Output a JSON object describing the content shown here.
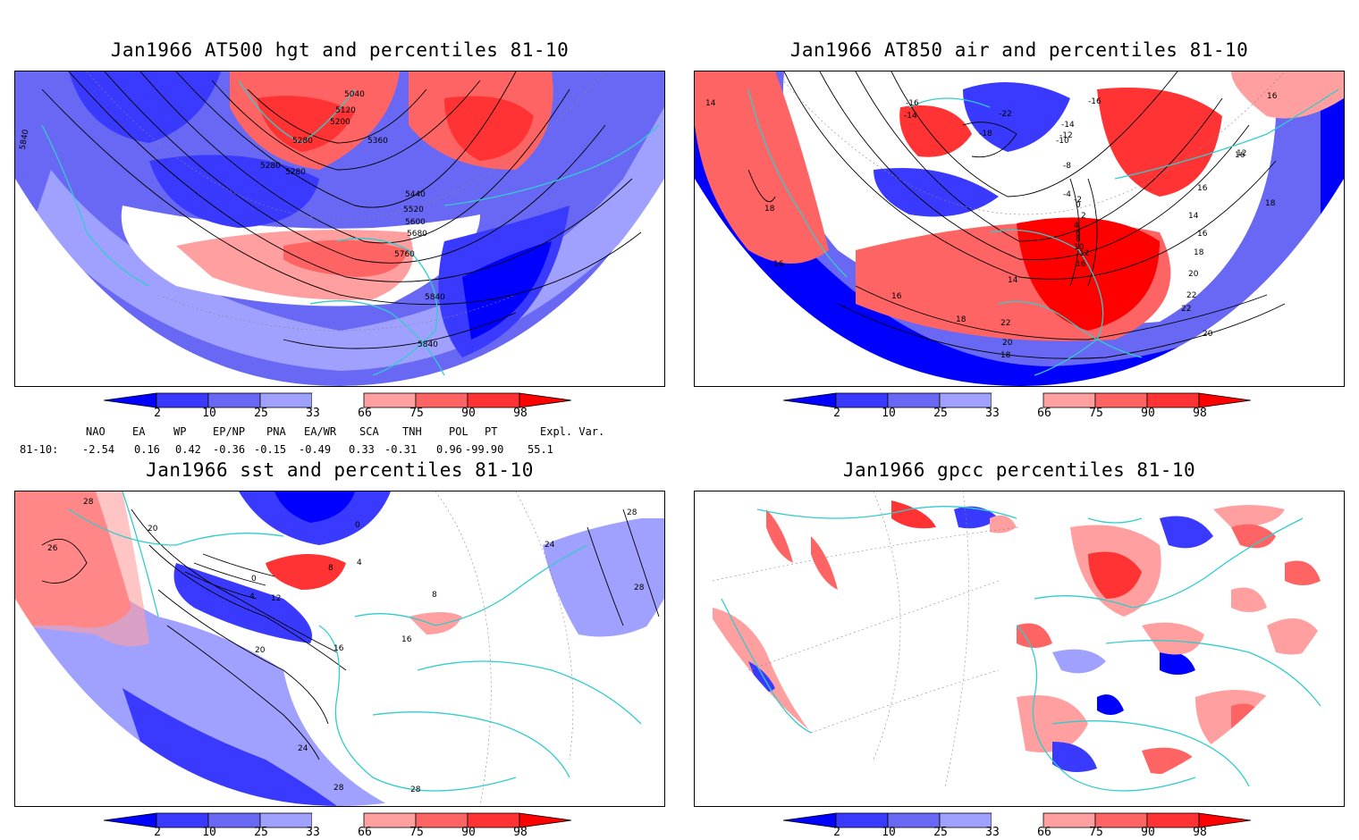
{
  "panels": [
    {
      "title": "Jan1966 AT500 hgt and percentiles 81-10",
      "contour_labels": [
        "5040",
        "5120",
        "5200",
        "5280",
        "5360",
        "5280",
        "5280",
        "5440",
        "5520",
        "5600",
        "5680",
        "5760",
        "5840",
        "5840",
        "5840"
      ]
    },
    {
      "title": "Jan1966 AT850 air and percentiles 81-10",
      "contour_labels": [
        "-16",
        "-14",
        "-16",
        "-18",
        "-22",
        "-14",
        "-12",
        "-10",
        "-8",
        "-4",
        "-2",
        "0",
        "2",
        "4",
        "6",
        "8",
        "10",
        "12",
        "14",
        "16",
        "16",
        "18",
        "20",
        "22",
        "22",
        "20",
        "18",
        "16",
        "16",
        "14",
        "14",
        "12",
        "16",
        "18",
        "16",
        "18",
        "22",
        "20",
        "18",
        "16"
      ]
    },
    {
      "title": "Jan1966 sst and percentiles 81-10",
      "contour_labels": [
        "28",
        "26",
        "20",
        "0",
        "4",
        "8",
        "12",
        "16",
        "20",
        "24",
        "28",
        "28",
        "16",
        "8",
        "4",
        "0",
        "24",
        "28",
        "28"
      ]
    },
    {
      "title": "Jan1966 gpcc percentiles 81-10",
      "contour_labels": []
    }
  ],
  "colorbar": {
    "ticks": [
      "2",
      "10",
      "25",
      "33",
      "66",
      "75",
      "90",
      "98"
    ],
    "colors": [
      "#0000ff",
      "#3a3aff",
      "#6868f5",
      "#a0a0ff",
      "#ffffff",
      "#ff9f9f",
      "#ff6464",
      "#ff3333",
      "#ff0000"
    ]
  },
  "indices": {
    "headers": [
      "NAO",
      "EA",
      "WP",
      "EP/NP",
      "PNA",
      "EA/WR",
      "SCA",
      "TNH",
      "POL",
      "PT",
      "Expl. Var."
    ],
    "row_label": "81-10:",
    "values": [
      "-2.54",
      "0.16",
      "0.42",
      "-0.36",
      "-0.15",
      "-0.49",
      "0.33",
      "-0.31",
      "0.96",
      "-99.90",
      "55.1"
    ]
  },
  "colors": {
    "coast": "#33cccc",
    "contour": "#000000",
    "grid": "#888888"
  }
}
